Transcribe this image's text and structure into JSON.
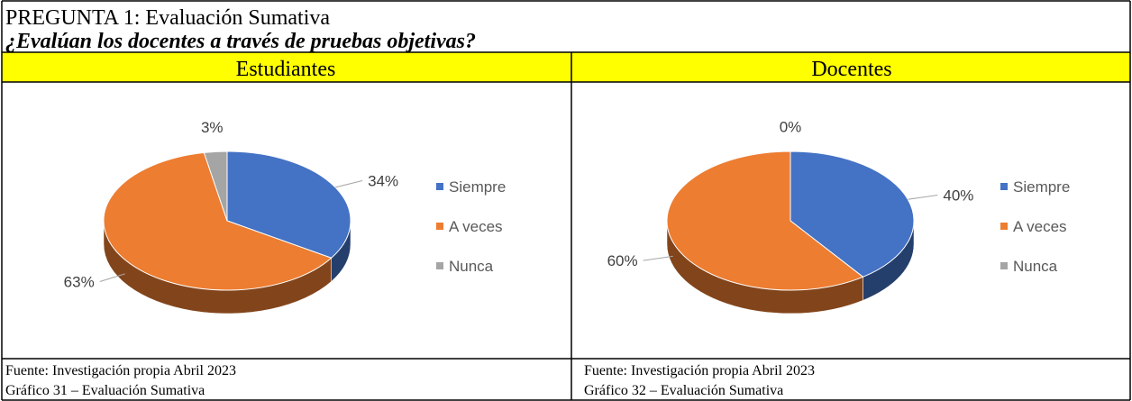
{
  "header": {
    "title": "PREGUNTA 1: Evaluación Sumativa",
    "question": "¿Evalúan los docentes a través de pruebas objetivas?"
  },
  "columns": [
    "Estudiantes",
    "Docentes"
  ],
  "chart_data": [
    {
      "type": "pie",
      "categories": [
        "Siempre",
        "A veces",
        "Nunca"
      ],
      "values": [
        34,
        63,
        3
      ],
      "value_labels": [
        "34%",
        "63%",
        "3%"
      ],
      "colors": [
        "#4472c4",
        "#ed7d31",
        "#a5a5a5"
      ],
      "legend": "right"
    },
    {
      "type": "pie",
      "categories": [
        "Siempre",
        "A veces",
        "Nunca"
      ],
      "values": [
        40,
        60,
        0
      ],
      "value_labels": [
        "40%",
        "60%",
        "0%"
      ],
      "colors": [
        "#4472c4",
        "#ed7d31",
        "#a5a5a5"
      ],
      "legend": "right"
    }
  ],
  "footnotes": [
    [
      "Fuente: Investigación propia Abril 2023",
      "Gráfico 31 – Evaluación Sumativa"
    ],
    [
      "Fuente: Investigación propia Abril 2023",
      "Gráfico 32 – Evaluación Sumativa"
    ]
  ]
}
